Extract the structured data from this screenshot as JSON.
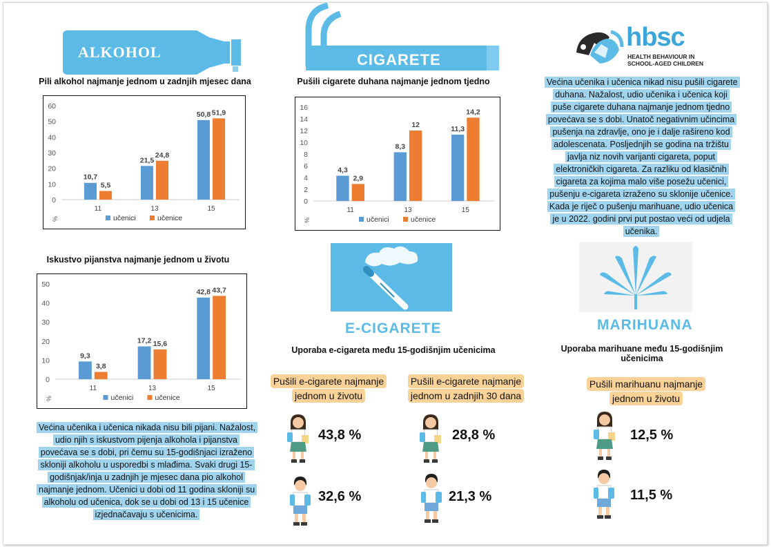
{
  "sections": {
    "alcohol": "ALKOHOL",
    "cigarettes": "CIGARETE",
    "ecig": "E-CIGARETE",
    "marijuana": "MARIHUANA"
  },
  "logo": {
    "name": "hbsc",
    "line1": "HEALTH BEHAVIOUR IN",
    "line2": "SCHOOL-AGED CHILDREN"
  },
  "legend": {
    "boys": "učenici",
    "girls": "učenice"
  },
  "colors": {
    "boys": "#5b9bd5",
    "girls": "#ed7d31",
    "accent": "#5bbbe6",
    "highlight": "#9fd3ee",
    "tag": "#fad297"
  },
  "texts": {
    "alcohol_note": "Većina učenika i učenica nikada nisu bili pijani. Nažalost, udio njih s iskustvom pijenja alkohola i pijanstva povećava se s dobi, pri čemu su 15-godišnjaci izraženo skloniji alkoholu u usporedbi s mlađima. Svaki drugi 15-godišnjak/inja u zadnjih je mjesec dana pio alkohol najmanje jednom. Učenici u dobi od 11 godina skloniji su alkoholu od učenica, dok se u dobi od 13 i 15 učenice izjednačavaju s učenicima.",
    "cig_note": "Većina učenika i učenica nikad nisu pušili cigarete duhana. Nažalost, udio učenika i učenica koji puše cigarete duhana najmanje jednom tjedno povećava se s dobi. Unatoč negativnim učincima pušenja na zdravlje, ono je i dalje rašireno kod adolescenata. Posljednjih se godina na tržištu javlja niz novih varijanti cigareta, poput elektroničkih cigareta. Za razliku od klasičnih cigareta za kojima malo više posežu učenici, pušenju e-cigareta izraženo su sklonije učenice. Kada je riječ o pušenju marihuane, udio učenica je u 2022. godini prvi put postao veći od udjela učenika."
  },
  "ecig": {
    "title": "Uporaba e-cigareta među 15-godišnjim učenicima",
    "tag_lifetime": "Pušili e-cigarete najmanje jednom u životu",
    "tag_30days": "Pušili e-cigarete najmanje jednom u zadnjih 30 dana",
    "girls_lifetime": "43,8 %",
    "boys_lifetime": "32,6 %",
    "girls_30days": "28,8 %",
    "boys_30days": "21,3 %"
  },
  "marijuana": {
    "title": "Uporaba marihuane među 15-godišnjim učenicima",
    "tag_lifetime": "Pušili marihuanu najmanje jednom u životu",
    "girls_lifetime": "12,5 %",
    "boys_lifetime": "11,5 %"
  },
  "chart_data": [
    {
      "id": "alcohol_month",
      "type": "bar",
      "title": "Pili alkohol najmanje jednom u zadnjih mjesec dana",
      "ylabel": "%",
      "categories": [
        "11",
        "13",
        "15"
      ],
      "yticks": [
        0,
        10,
        20,
        30,
        40,
        50,
        60
      ],
      "ylim": [
        0,
        60
      ],
      "grid": false,
      "legend": "bottom",
      "series": [
        {
          "name": "učenici",
          "values": [
            10.7,
            21.5,
            50.8
          ],
          "labels": [
            "10,7",
            "21,5",
            "50,8"
          ],
          "color": "#5b9bd5"
        },
        {
          "name": "učenice",
          "values": [
            5.5,
            24.8,
            51.9
          ],
          "labels": [
            "5,5",
            "24,8",
            "51,9"
          ],
          "color": "#ed7d31"
        }
      ]
    },
    {
      "id": "drunk_lifetime",
      "type": "bar",
      "title": "Iskustvo pijanstva najmanje jednom u životu",
      "ylabel": "%",
      "categories": [
        "11",
        "13",
        "15"
      ],
      "yticks": [
        0,
        10,
        20,
        30,
        40,
        50
      ],
      "ylim": [
        0,
        50
      ],
      "grid": false,
      "legend": "bottom",
      "series": [
        {
          "name": "učenici",
          "values": [
            9.3,
            17.2,
            42.8
          ],
          "labels": [
            "9,3",
            "17,2",
            "42,8"
          ],
          "color": "#5b9bd5"
        },
        {
          "name": "učenice",
          "values": [
            3.8,
            15.6,
            43.7
          ],
          "labels": [
            "3,8",
            "15,6",
            "43,7"
          ],
          "color": "#ed7d31"
        }
      ]
    },
    {
      "id": "cig_weekly",
      "type": "bar",
      "title": "Pušili cigarete duhana najmanje jednom tjedno",
      "ylabel": "%",
      "categories": [
        "11",
        "13",
        "15"
      ],
      "yticks": [
        0,
        2,
        4,
        6,
        8,
        10,
        12,
        14,
        16
      ],
      "ylim": [
        0,
        16
      ],
      "grid": false,
      "legend": "bottom",
      "series": [
        {
          "name": "učenici",
          "values": [
            4.3,
            8.3,
            11.3
          ],
          "labels": [
            "4,3",
            "8,3",
            "11,3"
          ],
          "color": "#5b9bd5"
        },
        {
          "name": "učenice",
          "values": [
            2.9,
            12,
            14.2
          ],
          "labels": [
            "2,9",
            "12",
            "14,2"
          ],
          "color": "#ed7d31"
        }
      ]
    }
  ]
}
